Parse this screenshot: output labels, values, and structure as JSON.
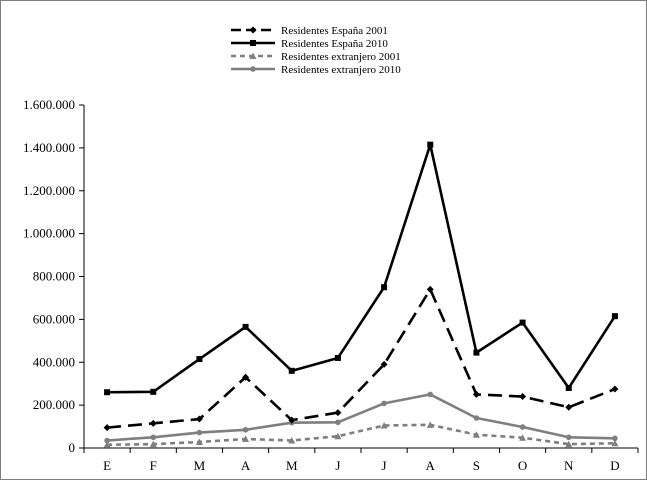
{
  "chart_data": {
    "type": "line",
    "title": "",
    "xlabel": "",
    "ylabel": "",
    "categories": [
      "E",
      "F",
      "M",
      "A",
      "M",
      "J",
      "J",
      "A",
      "S",
      "O",
      "N",
      "D"
    ],
    "ylim": [
      0,
      1600000
    ],
    "yticks": [
      0,
      200000,
      400000,
      600000,
      800000,
      1000000,
      1200000,
      1400000,
      1600000
    ],
    "ytick_labels": [
      "0",
      "200.000",
      "400.000",
      "600.000",
      "800.000",
      "1.000.000",
      "1.200.000",
      "1.400.000",
      "1.600.000"
    ],
    "grid": false,
    "legend_position": "top-center",
    "series": [
      {
        "name": "Residentes España 2001",
        "color": "#000000",
        "dash": "long-dash",
        "marker": "diamond",
        "values": [
          95000,
          115000,
          135000,
          330000,
          130000,
          165000,
          390000,
          740000,
          250000,
          240000,
          190000,
          275000
        ]
      },
      {
        "name": "Residentes España 2010",
        "color": "#000000",
        "dash": "solid",
        "marker": "square",
        "values": [
          260000,
          262000,
          415000,
          565000,
          360000,
          420000,
          750000,
          1415000,
          445000,
          585000,
          280000,
          615000
        ]
      },
      {
        "name": "Residentes extranjero 2001",
        "color": "#7f7f7f",
        "dash": "short-dash",
        "marker": "triangle",
        "values": [
          15000,
          18000,
          28000,
          42000,
          35000,
          55000,
          105000,
          108000,
          62000,
          48000,
          18000,
          22000
        ]
      },
      {
        "name": "Residentes extranjero 2010",
        "color": "#7f7f7f",
        "dash": "solid",
        "marker": "circle",
        "values": [
          35000,
          50000,
          72000,
          85000,
          118000,
          120000,
          208000,
          250000,
          140000,
          98000,
          50000,
          45000
        ]
      }
    ]
  }
}
